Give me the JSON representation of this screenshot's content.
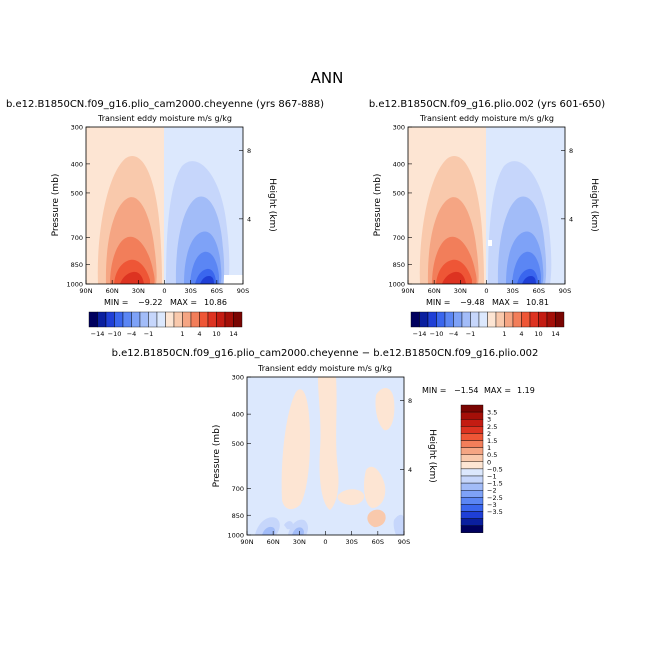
{
  "page_title": "ANN",
  "colors": {
    "neg": [
      "#00005e",
      "#0a1f9f",
      "#1f3fd6",
      "#3a66ee",
      "#5b86f4",
      "#7ea2f7",
      "#a2bcf8",
      "#c6d6fb",
      "#dce8fd"
    ],
    "pos": [
      "#fde5d3",
      "#f9c9ac",
      "#f5a583",
      "#f27e5a",
      "#ee5636",
      "#dd3321",
      "#c41c12",
      "#a40f08",
      "#7a0502"
    ]
  },
  "chart_data": [
    {
      "type": "contour",
      "title": "b.e12.B1850CN.f09_g16.plio_cam2000.cheyenne (yrs 867-888)",
      "subtitle": "Transient eddy moisture m/s g/kg",
      "ylabel": "Pressure (mb)",
      "y2label": "Height (km)",
      "xlabel": "",
      "x_ticks": [
        "90N",
        "60N",
        "30N",
        "0",
        "30S",
        "60S",
        "90S"
      ],
      "y_ticks": [
        "300",
        "400",
        "500",
        "700",
        "850",
        "1000"
      ],
      "y2_ticks": [
        "8",
        "4"
      ],
      "min_label": "MIN =",
      "min_value": "−9.22",
      "max_label": "MAX =",
      "max_value": "10.86",
      "colorbar_ticks": [
        "−14",
        "−10",
        "−4",
        "−1",
        "1",
        "4",
        "10",
        "14"
      ]
    },
    {
      "type": "contour",
      "title": "b.e12.B1850CN.f09_g16.plio.002 (yrs 601-650)",
      "subtitle": "Transient eddy moisture m/s g/kg",
      "ylabel": "Pressure (mb)",
      "y2label": "Height (km)",
      "xlabel": "",
      "x_ticks": [
        "90N",
        "60N",
        "30N",
        "0",
        "30S",
        "60S",
        "90S"
      ],
      "y_ticks": [
        "300",
        "400",
        "500",
        "700",
        "850",
        "1000"
      ],
      "y2_ticks": [
        "8",
        "4"
      ],
      "min_label": "MIN =",
      "min_value": "−9.48",
      "max_label": "MAX =",
      "max_value": "10.81",
      "colorbar_ticks": [
        "−14",
        "−10",
        "−4",
        "−1",
        "1",
        "4",
        "10",
        "14"
      ]
    },
    {
      "type": "contour",
      "title": "b.e12.B1850CN.f09_g16.plio_cam2000.cheyenne − b.e12.B1850CN.f09_g16.plio.002",
      "subtitle": "Transient eddy moisture m/s g/kg",
      "ylabel": "Pressure (mb)",
      "y2label": "Height (km)",
      "xlabel": "",
      "x_ticks": [
        "90N",
        "60N",
        "30N",
        "0",
        "30S",
        "60S",
        "90S"
      ],
      "y_ticks": [
        "300",
        "400",
        "500",
        "700",
        "850",
        "1000"
      ],
      "y2_ticks": [
        "8",
        "4"
      ],
      "min_label": "MIN =",
      "min_value": "−1.54",
      "max_label": "MAX =",
      "max_value": "1.19",
      "colorbar_ticks": [
        "3.5",
        "3",
        "2.5",
        "2",
        "1.5",
        "1",
        "0.5",
        "0",
        "−0.5",
        "−1",
        "−1.5",
        "−2",
        "−2.5",
        "−3",
        "−3.5"
      ]
    }
  ]
}
